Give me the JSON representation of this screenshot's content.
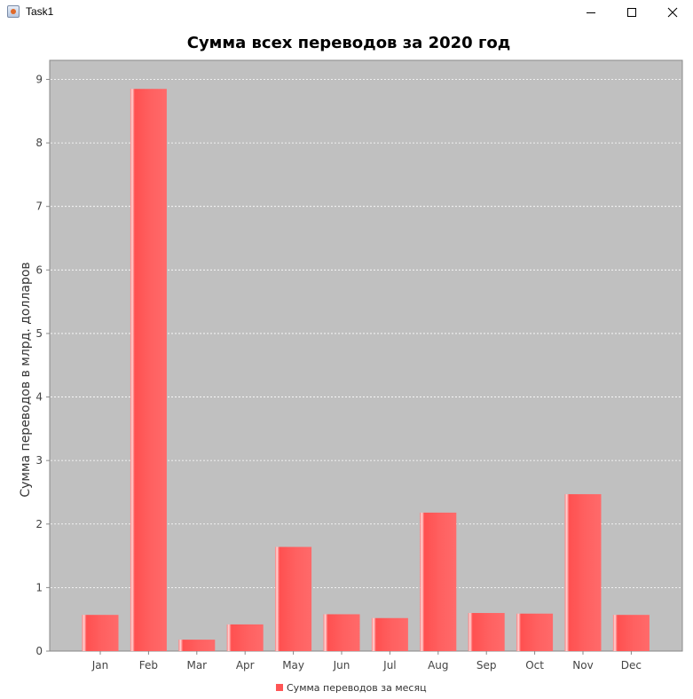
{
  "window": {
    "title": "Task1",
    "icon": "java-app-icon",
    "controls": [
      "minimize-icon",
      "maximize-icon",
      "close-icon"
    ]
  },
  "chart_data": {
    "type": "bar",
    "title": "Сумма всех переводов за 2020 год",
    "ylabel": "Сумма переводов в млрд. долларов",
    "xlabel": "",
    "categories": [
      "Jan",
      "Feb",
      "Mar",
      "Apr",
      "May",
      "Jun",
      "Jul",
      "Aug",
      "Sep",
      "Oct",
      "Nov",
      "Dec"
    ],
    "series": [
      {
        "name": "Сумма переводов за месяц",
        "color": "#ff5555",
        "values": [
          0.57,
          8.85,
          0.18,
          0.42,
          1.64,
          0.58,
          0.52,
          2.18,
          0.6,
          0.59,
          2.47,
          0.57
        ]
      }
    ],
    "ylim": [
      0,
      9.3
    ],
    "yticks": [
      "0",
      "1",
      "2",
      "3",
      "4",
      "5",
      "6",
      "7",
      "8",
      "9"
    ],
    "grid": true,
    "legend": "bottom-center",
    "plot_background": "#c0c0c0",
    "grid_color": "#ffffff"
  }
}
